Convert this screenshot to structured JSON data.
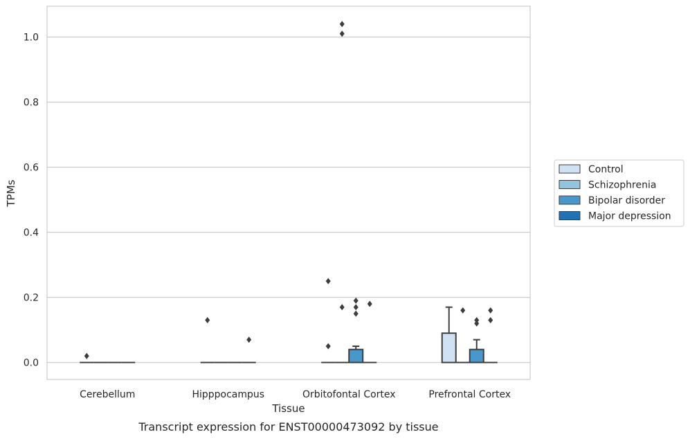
{
  "chart_data": {
    "type": "boxplot",
    "caption": "Transcript expression for ENST00000473092 by tissue",
    "xlabel": "Tissue",
    "ylabel": "TPMs",
    "ylim": [
      -0.05,
      1.09
    ],
    "yticks": [
      0.0,
      0.2,
      0.4,
      0.6,
      0.8,
      1.0
    ],
    "ytick_labels": [
      "0.0",
      "0.2",
      "0.4",
      "0.6",
      "0.8",
      "1.0"
    ],
    "grid": "horizontal",
    "legend_position": "right",
    "categories": [
      "Cerebellum",
      "Hipppocampus",
      "Orbitofontal Cortex",
      "Prefrontal Cortex"
    ],
    "series": [
      {
        "name": "Control",
        "color": "#cfe1f2",
        "boxes": [
          {
            "q1": 0,
            "median": 0,
            "q3": 0,
            "whislo": 0,
            "whishi": 0,
            "fliers": [
              0.02
            ]
          },
          {
            "q1": 0,
            "median": 0,
            "q3": 0,
            "whislo": 0,
            "whishi": 0,
            "fliers": [
              0.13
            ]
          },
          {
            "q1": 0,
            "median": 0,
            "q3": 0,
            "whislo": 0,
            "whishi": 0,
            "fliers": [
              0.25,
              0.05
            ]
          },
          {
            "q1": 0,
            "median": 0,
            "q3": 0.09,
            "whislo": 0,
            "whishi": 0.17,
            "fliers": []
          }
        ]
      },
      {
        "name": "Schizophrenia",
        "color": "#93c4de",
        "boxes": [
          {
            "q1": 0,
            "median": 0,
            "q3": 0,
            "whislo": 0,
            "whishi": 0,
            "fliers": []
          },
          {
            "q1": 0,
            "median": 0,
            "q3": 0,
            "whislo": 0,
            "whishi": 0,
            "fliers": []
          },
          {
            "q1": 0,
            "median": 0,
            "q3": 0,
            "whislo": 0,
            "whishi": 0,
            "fliers": [
              1.04,
              1.01,
              0.17
            ]
          },
          {
            "q1": 0,
            "median": 0,
            "q3": 0,
            "whislo": 0,
            "whishi": 0,
            "fliers": [
              0.16
            ]
          }
        ]
      },
      {
        "name": "Bipolar disorder",
        "color": "#4a98c9",
        "boxes": [
          {
            "q1": 0,
            "median": 0,
            "q3": 0,
            "whislo": 0,
            "whishi": 0,
            "fliers": []
          },
          {
            "q1": 0,
            "median": 0,
            "q3": 0,
            "whislo": 0,
            "whishi": 0,
            "fliers": []
          },
          {
            "q1": 0,
            "median": 0,
            "q3": 0.04,
            "whislo": 0,
            "whishi": 0.05,
            "fliers": [
              0.19,
              0.17,
              0.15
            ]
          },
          {
            "q1": 0,
            "median": 0,
            "q3": 0.04,
            "whislo": 0,
            "whishi": 0.07,
            "fliers": [
              0.13,
              0.12
            ]
          }
        ]
      },
      {
        "name": "Major depression",
        "color": "#2171b5",
        "boxes": [
          {
            "q1": 0,
            "median": 0,
            "q3": 0,
            "whislo": 0,
            "whishi": 0,
            "fliers": []
          },
          {
            "q1": 0,
            "median": 0,
            "q3": 0,
            "whislo": 0,
            "whishi": 0,
            "fliers": [
              0.07
            ]
          },
          {
            "q1": 0,
            "median": 0,
            "q3": 0,
            "whislo": 0,
            "whishi": 0,
            "fliers": [
              0.18
            ]
          },
          {
            "q1": 0,
            "median": 0,
            "q3": 0,
            "whislo": 0,
            "whishi": 0,
            "fliers": [
              0.16,
              0.13
            ]
          }
        ]
      }
    ]
  }
}
